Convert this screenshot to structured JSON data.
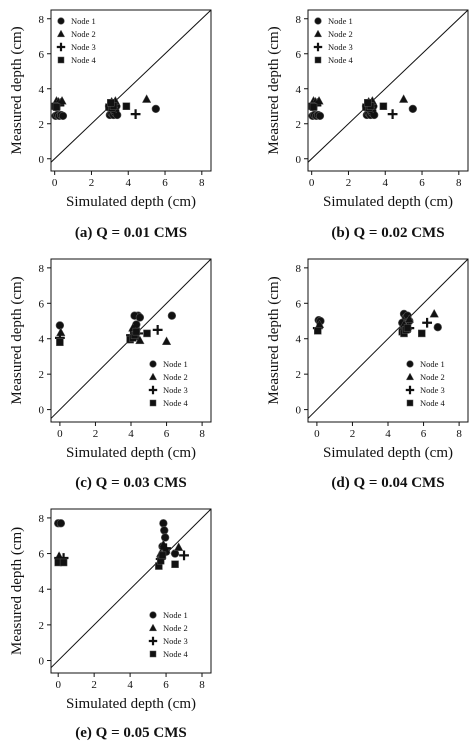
{
  "chart_data": [
    {
      "type": "scatter",
      "caption": "(a) Q = 0.01 CMS",
      "xlabel": "Simulated depth (cm)",
      "ylabel": "Measured depth (cm)",
      "xlim": [
        -0.2,
        8.5
      ],
      "ylim": [
        -0.7,
        8.5
      ],
      "xticks": [
        0,
        2,
        4,
        6,
        8
      ],
      "yticks": [
        0,
        2,
        4,
        6,
        8
      ],
      "identity_line": true,
      "legend_position": "top-left",
      "series": [
        {
          "name": "Node 1",
          "marker": "circle",
          "points": [
            [
              0.05,
              2.45
            ],
            [
              0.15,
              2.5
            ],
            [
              0.25,
              2.45
            ],
            [
              0.35,
              2.5
            ],
            [
              0.45,
              2.45
            ],
            [
              3.0,
              2.5
            ],
            [
              3.1,
              2.6
            ],
            [
              3.2,
              2.5
            ],
            [
              3.3,
              2.6
            ],
            [
              3.4,
              2.5
            ],
            [
              3.0,
              2.9
            ],
            [
              3.2,
              2.8
            ],
            [
              3.35,
              3.0
            ],
            [
              5.5,
              2.85
            ]
          ]
        },
        {
          "name": "Node 2",
          "marker": "triangle",
          "points": [
            [
              0.1,
              3.3
            ],
            [
              0.2,
              3.25
            ],
            [
              0.3,
              3.2
            ],
            [
              0.4,
              3.3
            ],
            [
              3.1,
              3.25
            ],
            [
              3.3,
              3.3
            ],
            [
              3.2,
              3.1
            ],
            [
              5.0,
              3.4
            ]
          ]
        },
        {
          "name": "Node 3",
          "marker": "plus",
          "points": [
            [
              0.05,
              3.0
            ],
            [
              0.25,
              3.05
            ],
            [
              3.0,
              3.0
            ],
            [
              3.15,
              3.05
            ],
            [
              3.3,
              3.0
            ],
            [
              3.25,
              2.75
            ],
            [
              4.4,
              2.55
            ]
          ]
        },
        {
          "name": "Node 4",
          "marker": "square",
          "points": [
            [
              0.0,
              3.0
            ],
            [
              0.1,
              2.95
            ],
            [
              2.95,
              2.95
            ],
            [
              3.1,
              2.9
            ],
            [
              3.2,
              3.0
            ],
            [
              3.05,
              3.2
            ],
            [
              3.9,
              3.0
            ]
          ]
        }
      ]
    },
    {
      "type": "scatter",
      "caption": "(b) Q = 0.02 CMS",
      "xlabel": "Simulated depth (cm)",
      "ylabel": "Measured depth (cm)",
      "xlim": [
        -0.2,
        8.5
      ],
      "ylim": [
        -0.7,
        8.5
      ],
      "xticks": [
        0,
        2,
        4,
        6,
        8
      ],
      "yticks": [
        0,
        2,
        4,
        6,
        8
      ],
      "identity_line": true,
      "legend_position": "top-left",
      "series": [
        {
          "name": "Node 1",
          "marker": "circle",
          "points": [
            [
              0.05,
              2.45
            ],
            [
              0.15,
              2.5
            ],
            [
              0.25,
              2.45
            ],
            [
              0.35,
              2.5
            ],
            [
              0.45,
              2.45
            ],
            [
              3.0,
              2.5
            ],
            [
              3.1,
              2.6
            ],
            [
              3.2,
              2.5
            ],
            [
              3.3,
              2.6
            ],
            [
              3.4,
              2.5
            ],
            [
              3.0,
              2.9
            ],
            [
              3.2,
              2.8
            ],
            [
              3.35,
              3.0
            ],
            [
              5.5,
              2.85
            ]
          ]
        },
        {
          "name": "Node 2",
          "marker": "triangle",
          "points": [
            [
              0.1,
              3.3
            ],
            [
              0.2,
              3.25
            ],
            [
              0.3,
              3.2
            ],
            [
              0.4,
              3.3
            ],
            [
              3.1,
              3.25
            ],
            [
              3.3,
              3.3
            ],
            [
              3.2,
              3.1
            ],
            [
              5.0,
              3.4
            ]
          ]
        },
        {
          "name": "Node 3",
          "marker": "plus",
          "points": [
            [
              0.05,
              3.0
            ],
            [
              0.25,
              3.05
            ],
            [
              3.0,
              3.0
            ],
            [
              3.15,
              3.05
            ],
            [
              3.3,
              3.0
            ],
            [
              3.25,
              2.75
            ],
            [
              4.4,
              2.55
            ]
          ]
        },
        {
          "name": "Node 4",
          "marker": "square",
          "points": [
            [
              0.0,
              3.0
            ],
            [
              0.1,
              2.95
            ],
            [
              2.95,
              2.95
            ],
            [
              3.1,
              2.9
            ],
            [
              3.2,
              3.0
            ],
            [
              3.05,
              3.2
            ],
            [
              3.9,
              3.0
            ]
          ]
        }
      ]
    },
    {
      "type": "scatter",
      "caption": "(c) Q = 0.03 CMS",
      "xlabel": "Simulated depth (cm)",
      "ylabel": "Measured depth (cm)",
      "xlim": [
        -0.5,
        8.5
      ],
      "ylim": [
        -0.7,
        8.5
      ],
      "xticks": [
        0,
        2,
        4,
        6,
        8
      ],
      "yticks": [
        0,
        2,
        4,
        6,
        8
      ],
      "identity_line": true,
      "legend_position": "bottom-right",
      "series": [
        {
          "name": "Node 1",
          "marker": "circle",
          "points": [
            [
              0.0,
              4.75
            ],
            [
              4.1,
              4.1
            ],
            [
              4.2,
              4.3
            ],
            [
              4.3,
              4.5
            ],
            [
              4.4,
              5.3
            ],
            [
              4.2,
              5.3
            ],
            [
              4.3,
              4.8
            ],
            [
              4.5,
              5.2
            ],
            [
              6.3,
              5.3
            ]
          ]
        },
        {
          "name": "Node 2",
          "marker": "triangle",
          "points": [
            [
              0.05,
              4.35
            ],
            [
              4.1,
              4.6
            ],
            [
              4.25,
              4.4
            ],
            [
              4.3,
              4.1
            ],
            [
              4.5,
              3.9
            ],
            [
              6.0,
              3.85
            ]
          ]
        },
        {
          "name": "Node 3",
          "marker": "plus",
          "points": [
            [
              0.0,
              4.05
            ],
            [
              4.0,
              4.2
            ],
            [
              4.2,
              4.5
            ],
            [
              4.4,
              4.3
            ],
            [
              5.5,
              4.5
            ]
          ]
        },
        {
          "name": "Node 4",
          "marker": "square",
          "points": [
            [
              0.0,
              3.8
            ],
            [
              3.95,
              3.95
            ],
            [
              4.1,
              4.05
            ],
            [
              4.2,
              4.2
            ],
            [
              4.3,
              4.4
            ],
            [
              4.9,
              4.3
            ]
          ]
        }
      ]
    },
    {
      "type": "scatter",
      "caption": "(d) Q = 0.04 CMS",
      "xlabel": "Simulated depth (cm)",
      "ylabel": "Measured depth (cm)",
      "xlim": [
        -0.5,
        8.5
      ],
      "ylim": [
        -0.7,
        8.5
      ],
      "xticks": [
        0,
        2,
        4,
        6,
        8
      ],
      "yticks": [
        0,
        2,
        4,
        6,
        8
      ],
      "identity_line": true,
      "legend_position": "bottom-right",
      "series": [
        {
          "name": "Node 1",
          "marker": "circle",
          "points": [
            [
              0.1,
              5.05
            ],
            [
              0.2,
              5.0
            ],
            [
              4.9,
              5.4
            ],
            [
              5.0,
              5.2
            ],
            [
              5.1,
              5.3
            ],
            [
              5.2,
              5.0
            ],
            [
              4.8,
              4.9
            ],
            [
              5.0,
              4.6
            ],
            [
              6.8,
              4.65
            ]
          ]
        },
        {
          "name": "Node 2",
          "marker": "triangle",
          "points": [
            [
              0.15,
              4.8
            ],
            [
              4.9,
              4.8
            ],
            [
              5.1,
              4.7
            ],
            [
              5.2,
              5.1
            ],
            [
              6.6,
              5.4
            ]
          ]
        },
        {
          "name": "Node 3",
          "marker": "plus",
          "points": [
            [
              0.05,
              4.6
            ],
            [
              4.9,
              4.5
            ],
            [
              5.0,
              4.4
            ],
            [
              5.2,
              4.6
            ],
            [
              6.2,
              4.9
            ]
          ]
        },
        {
          "name": "Node 4",
          "marker": "square",
          "points": [
            [
              0.05,
              4.45
            ],
            [
              4.8,
              4.4
            ],
            [
              4.9,
              4.3
            ],
            [
              5.0,
              4.5
            ],
            [
              5.1,
              4.6
            ],
            [
              5.9,
              4.3
            ]
          ]
        }
      ]
    },
    {
      "type": "scatter",
      "caption": "(e) Q = 0.05 CMS",
      "xlabel": "Simulated depth (cm)",
      "ylabel": "Measured depth (cm)",
      "xlim": [
        -0.4,
        8.5
      ],
      "ylim": [
        -0.7,
        8.5
      ],
      "xticks": [
        0,
        2,
        4,
        6,
        8
      ],
      "yticks": [
        0,
        2,
        4,
        6,
        8
      ],
      "identity_line": true,
      "legend_position": "bottom-right",
      "series": [
        {
          "name": "Node 1",
          "marker": "circle",
          "points": [
            [
              0.0,
              7.7
            ],
            [
              0.15,
              7.7
            ],
            [
              5.85,
              7.7
            ],
            [
              5.9,
              7.3
            ],
            [
              5.95,
              6.9
            ],
            [
              5.8,
              6.4
            ],
            [
              6.0,
              6.1
            ],
            [
              6.5,
              6.0
            ]
          ]
        },
        {
          "name": "Node 2",
          "marker": "triangle",
          "points": [
            [
              0.05,
              5.85
            ],
            [
              5.7,
              6.0
            ],
            [
              5.85,
              6.5
            ],
            [
              6.0,
              6.2
            ],
            [
              6.7,
              6.35
            ]
          ]
        },
        {
          "name": "Node 3",
          "marker": "plus",
          "points": [
            [
              0.05,
              5.75
            ],
            [
              0.3,
              5.75
            ],
            [
              5.7,
              5.7
            ],
            [
              5.9,
              6.0
            ],
            [
              6.0,
              6.3
            ],
            [
              7.0,
              5.9
            ]
          ]
        },
        {
          "name": "Node 4",
          "marker": "square",
          "points": [
            [
              0.0,
              5.5
            ],
            [
              0.3,
              5.5
            ],
            [
              5.6,
              5.3
            ],
            [
              5.7,
              5.6
            ],
            [
              5.8,
              5.9
            ],
            [
              6.5,
              5.4
            ]
          ]
        }
      ]
    }
  ]
}
